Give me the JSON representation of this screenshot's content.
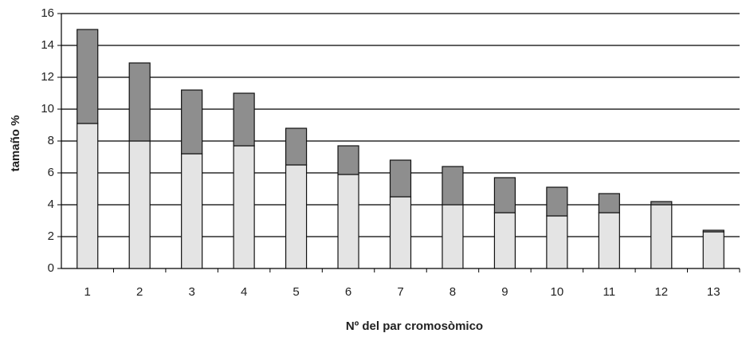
{
  "chart_data": {
    "type": "stacked_bar",
    "x_label": "Nº del par cromosòmico",
    "y_label": "tamaño %",
    "categories": [
      "1",
      "2",
      "3",
      "4",
      "5",
      "6",
      "7",
      "8",
      "9",
      "10",
      "11",
      "12",
      "13"
    ],
    "series": [
      {
        "color": "#e4e4e4",
        "values": [
          9.1,
          8.0,
          7.2,
          7.7,
          6.5,
          5.9,
          4.5,
          4.0,
          3.5,
          3.3,
          3.5,
          4.0,
          2.3
        ]
      },
      {
        "color": "#8e8e8e",
        "values": [
          5.9,
          4.9,
          4.0,
          3.3,
          2.3,
          1.8,
          2.3,
          2.4,
          2.2,
          1.8,
          1.2,
          0.2,
          0.1
        ]
      }
    ],
    "ylim": [
      0,
      16
    ],
    "yticks": [
      0,
      2,
      4,
      6,
      8,
      10,
      12,
      14,
      16
    ],
    "grid": true
  }
}
